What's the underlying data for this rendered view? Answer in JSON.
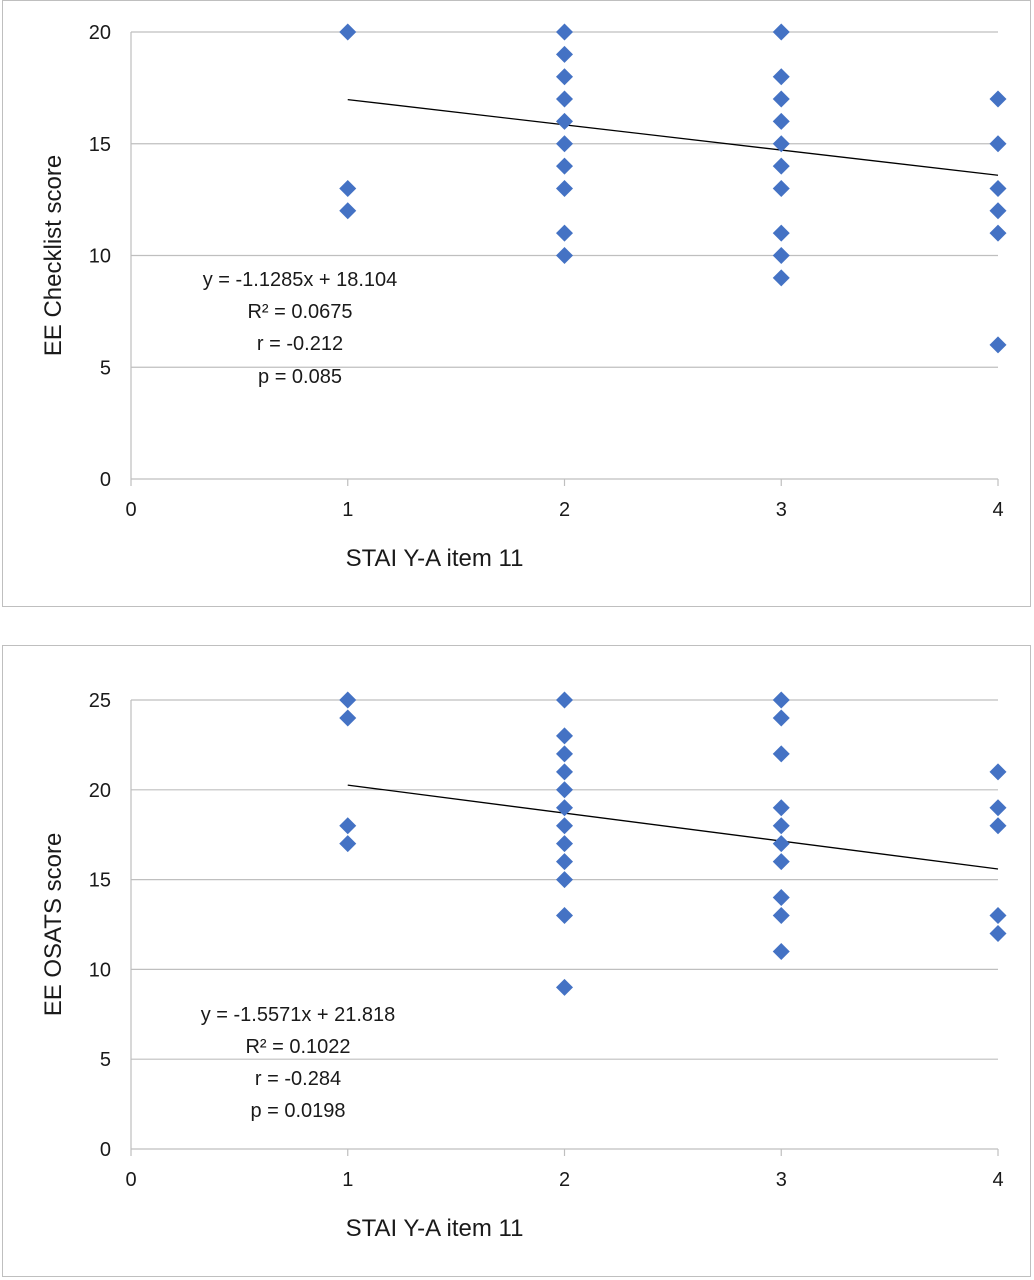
{
  "chart_data": [
    {
      "type": "scatter",
      "xlabel": "STAI Y-A item 11",
      "ylabel": "EE Checklist score",
      "xlim": [
        0,
        4
      ],
      "ylim": [
        0,
        20
      ],
      "x_ticks": [
        "0",
        "1",
        "2",
        "3",
        "4"
      ],
      "y_ticks": [
        "0",
        "5",
        "10",
        "15",
        "20"
      ],
      "grid": "horizontal",
      "marker": "diamond",
      "marker_color": "#4472c4",
      "trendline": {
        "slope": -1.1285,
        "intercept": 18.104,
        "x_range": [
          1,
          4
        ]
      },
      "annotation": [
        "y = -1.1285x + 18.104",
        "R² = 0.0675",
        "r = -0.212",
        "p = 0.085"
      ],
      "points": [
        {
          "x": 1,
          "y": 20
        },
        {
          "x": 1,
          "y": 13
        },
        {
          "x": 1,
          "y": 12
        },
        {
          "x": 2,
          "y": 20
        },
        {
          "x": 2,
          "y": 19
        },
        {
          "x": 2,
          "y": 18
        },
        {
          "x": 2,
          "y": 17
        },
        {
          "x": 2,
          "y": 16
        },
        {
          "x": 2,
          "y": 15
        },
        {
          "x": 2,
          "y": 14
        },
        {
          "x": 2,
          "y": 13
        },
        {
          "x": 2,
          "y": 11
        },
        {
          "x": 2,
          "y": 10
        },
        {
          "x": 3,
          "y": 20
        },
        {
          "x": 3,
          "y": 18
        },
        {
          "x": 3,
          "y": 17
        },
        {
          "x": 3,
          "y": 16
        },
        {
          "x": 3,
          "y": 15
        },
        {
          "x": 3,
          "y": 14
        },
        {
          "x": 3,
          "y": 13
        },
        {
          "x": 3,
          "y": 11
        },
        {
          "x": 3,
          "y": 10
        },
        {
          "x": 3,
          "y": 9
        },
        {
          "x": 4,
          "y": 17
        },
        {
          "x": 4,
          "y": 15
        },
        {
          "x": 4,
          "y": 13
        },
        {
          "x": 4,
          "y": 12
        },
        {
          "x": 4,
          "y": 11
        },
        {
          "x": 4,
          "y": 6
        }
      ]
    },
    {
      "type": "scatter",
      "xlabel": "STAI Y-A item 11",
      "ylabel": "EE OSATS score",
      "xlim": [
        0,
        4
      ],
      "ylim": [
        0,
        25
      ],
      "x_ticks": [
        "0",
        "1",
        "2",
        "3",
        "4"
      ],
      "y_ticks": [
        "0",
        "5",
        "10",
        "15",
        "20",
        "25"
      ],
      "grid": "horizontal",
      "marker": "diamond",
      "marker_color": "#4472c4",
      "trendline": {
        "slope": -1.5571,
        "intercept": 21.818,
        "x_range": [
          1,
          4
        ]
      },
      "annotation": [
        "y = -1.5571x + 21.818",
        "R² = 0.1022",
        "r = -0.284",
        "p = 0.0198"
      ],
      "points": [
        {
          "x": 1,
          "y": 25
        },
        {
          "x": 1,
          "y": 24
        },
        {
          "x": 1,
          "y": 18
        },
        {
          "x": 1,
          "y": 17
        },
        {
          "x": 2,
          "y": 25
        },
        {
          "x": 2,
          "y": 23
        },
        {
          "x": 2,
          "y": 22
        },
        {
          "x": 2,
          "y": 21
        },
        {
          "x": 2,
          "y": 20
        },
        {
          "x": 2,
          "y": 19
        },
        {
          "x": 2,
          "y": 18
        },
        {
          "x": 2,
          "y": 17
        },
        {
          "x": 2,
          "y": 16
        },
        {
          "x": 2,
          "y": 15
        },
        {
          "x": 2,
          "y": 13
        },
        {
          "x": 2,
          "y": 9
        },
        {
          "x": 3,
          "y": 25
        },
        {
          "x": 3,
          "y": 24
        },
        {
          "x": 3,
          "y": 22
        },
        {
          "x": 3,
          "y": 19
        },
        {
          "x": 3,
          "y": 18
        },
        {
          "x": 3,
          "y": 17
        },
        {
          "x": 3,
          "y": 16
        },
        {
          "x": 3,
          "y": 14
        },
        {
          "x": 3,
          "y": 13
        },
        {
          "x": 3,
          "y": 11
        },
        {
          "x": 4,
          "y": 21
        },
        {
          "x": 4,
          "y": 19
        },
        {
          "x": 4,
          "y": 18
        },
        {
          "x": 4,
          "y": 13
        },
        {
          "x": 4,
          "y": 12
        }
      ]
    }
  ]
}
